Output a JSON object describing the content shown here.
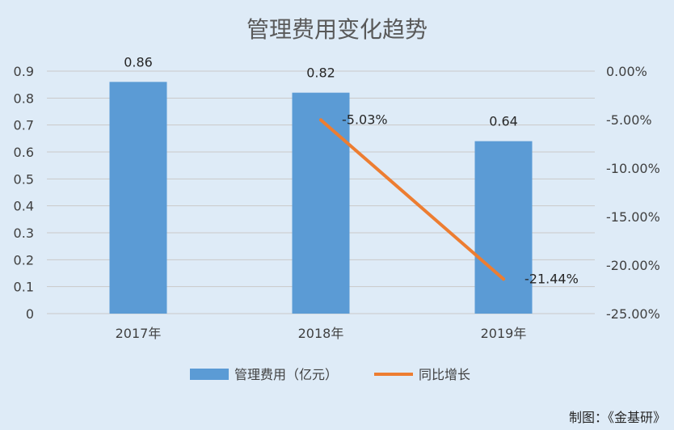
{
  "chart_data": {
    "type": "bar",
    "title": "管理费用变化趋势",
    "categories": [
      "2017年",
      "2018年",
      "2019年"
    ],
    "series": [
      {
        "name": "管理费用（亿元）",
        "type": "bar",
        "axis": "left",
        "color": "#5b9bd5",
        "values": [
          0.86,
          0.82,
          0.64
        ],
        "labels": [
          "0.86",
          "0.82",
          "0.64"
        ]
      },
      {
        "name": "同比增长",
        "type": "line",
        "axis": "right",
        "color": "#ed7d31",
        "values": [
          null,
          -5.03,
          -21.44
        ],
        "labels": [
          "",
          "-5.03%",
          "-21.44%"
        ]
      }
    ],
    "left_axis": {
      "ylim": [
        0,
        0.9
      ],
      "ticks": [
        0,
        0.1,
        0.2,
        0.3,
        0.4,
        0.5,
        0.6,
        0.7,
        0.8,
        0.9
      ],
      "tick_labels": [
        "0",
        "0.1",
        "0.2",
        "0.3",
        "0.4",
        "0.5",
        "0.6",
        "0.7",
        "0.8",
        "0.9"
      ]
    },
    "right_axis": {
      "ylim": [
        -25,
        0
      ],
      "ticks": [
        0,
        -5,
        -10,
        -15,
        -20,
        -25
      ],
      "tick_labels": [
        "0.00%",
        "-5.00%",
        "-10.00%",
        "-15.00%",
        "-20.00%",
        "-25.00%"
      ]
    },
    "grid": true,
    "legend_position": "bottom"
  },
  "credit": "制图：《金基研》"
}
